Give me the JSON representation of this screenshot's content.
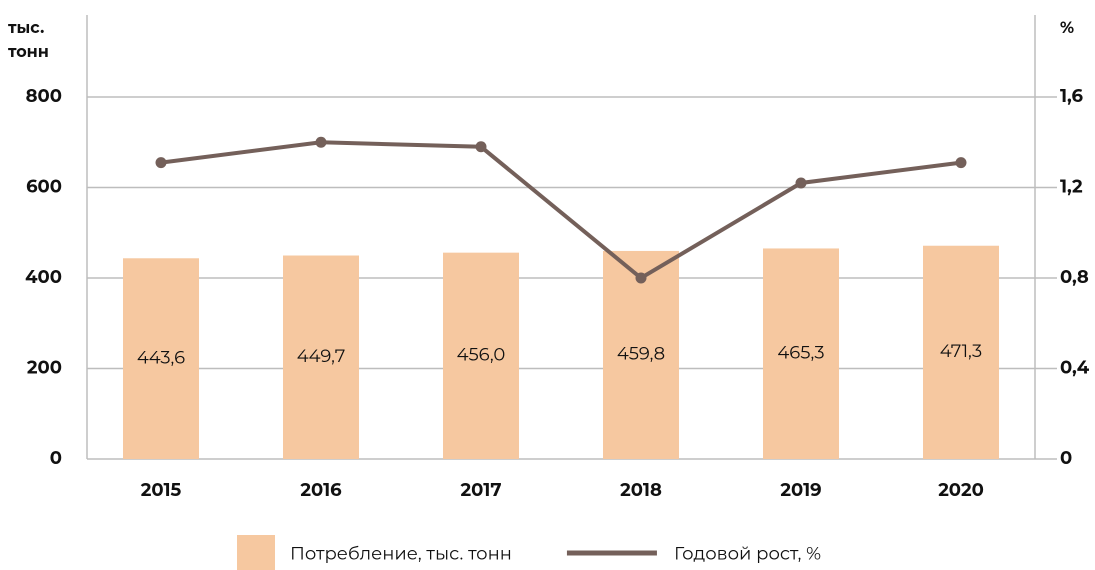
{
  "chart_data": {
    "type": "bar",
    "ylabel": "тыс. тонн",
    "y2label": "%",
    "categories": [
      "2015",
      "2016",
      "2017",
      "2018",
      "2019",
      "2020"
    ],
    "series": [
      {
        "name": "Потребление, тыс. тонн",
        "type": "bar",
        "color": "#f6c8a0",
        "values": [
          443.6,
          449.7,
          456.0,
          459.8,
          465.3,
          471.3
        ],
        "value_labels": [
          "443,6",
          "449,7",
          "456,0",
          "459,8",
          "465,3",
          "471,3"
        ]
      },
      {
        "name": "Годовой рост, %",
        "type": "line",
        "axis": "y2",
        "color": "#74605a",
        "values": [
          1.31,
          1.4,
          1.38,
          0.8,
          1.22,
          1.31
        ]
      }
    ],
    "ylim": [
      0,
      800
    ],
    "yticks": [
      0,
      200,
      400,
      600,
      800
    ],
    "y2lim": [
      0,
      1.6
    ],
    "y2ticks": [
      0,
      {
        "value": 0.4,
        "label": "0,4"
      },
      {
        "value": 0.8,
        "label": "0,8"
      },
      {
        "value": 1.2,
        "label": "1,2"
      },
      {
        "value": 1.6,
        "label": "1,6"
      }
    ],
    "grid": true,
    "legend": "bottom"
  }
}
